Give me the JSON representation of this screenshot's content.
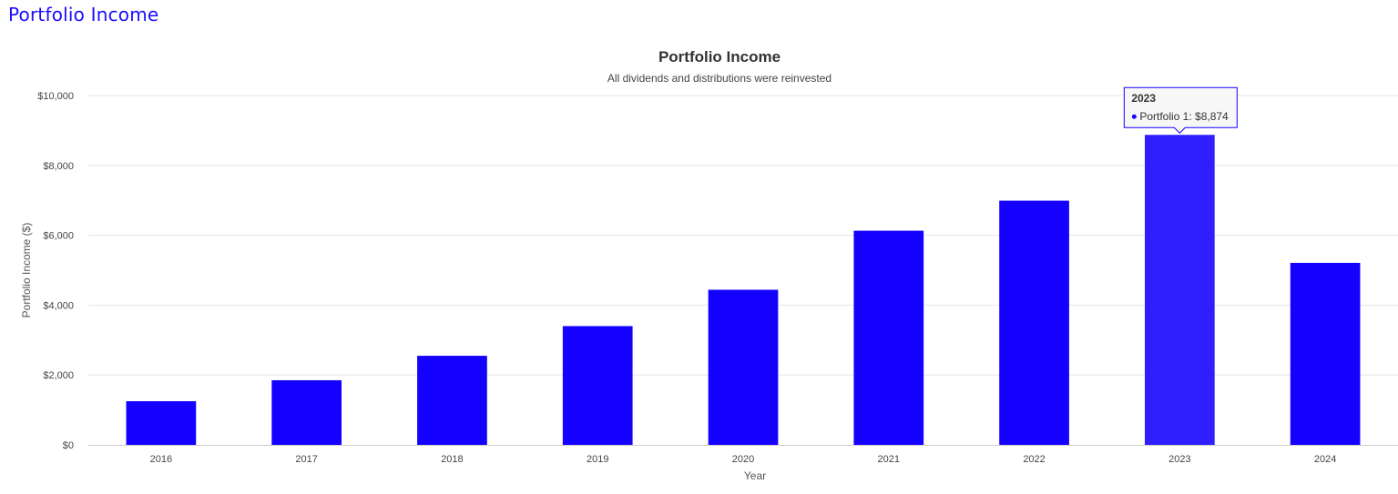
{
  "page": {
    "heading": "Portfolio Income"
  },
  "chart_data": {
    "type": "bar",
    "title": "Portfolio Income",
    "subtitle": "All dividends and distributions were reinvested",
    "xlabel": "Year",
    "ylabel": "Portfolio Income ($)",
    "categories": [
      "2016",
      "2017",
      "2018",
      "2019",
      "2020",
      "2021",
      "2022",
      "2023",
      "2024"
    ],
    "series": [
      {
        "name": "Portfolio 1",
        "values": [
          1250,
          1850,
          2550,
          3400,
          4440,
          6130,
          6990,
          8874,
          5210
        ]
      }
    ],
    "ylim": [
      0,
      10000
    ],
    "yticks": [
      0,
      2000,
      4000,
      6000,
      8000,
      10000
    ],
    "ytick_labels": [
      "$0",
      "$2,000",
      "$4,000",
      "$6,000",
      "$8,000",
      "$10,000"
    ],
    "grid": true,
    "legend": "none",
    "colors": {
      "bar": "#1400ff",
      "bar_highlight": "#2f1fff",
      "grid": "#e6e6e6",
      "axis": "#cccccc"
    },
    "tooltip": {
      "category": "2023",
      "title": "2023",
      "series_label": "Portfolio 1: ",
      "value_label": "$8,874"
    }
  }
}
